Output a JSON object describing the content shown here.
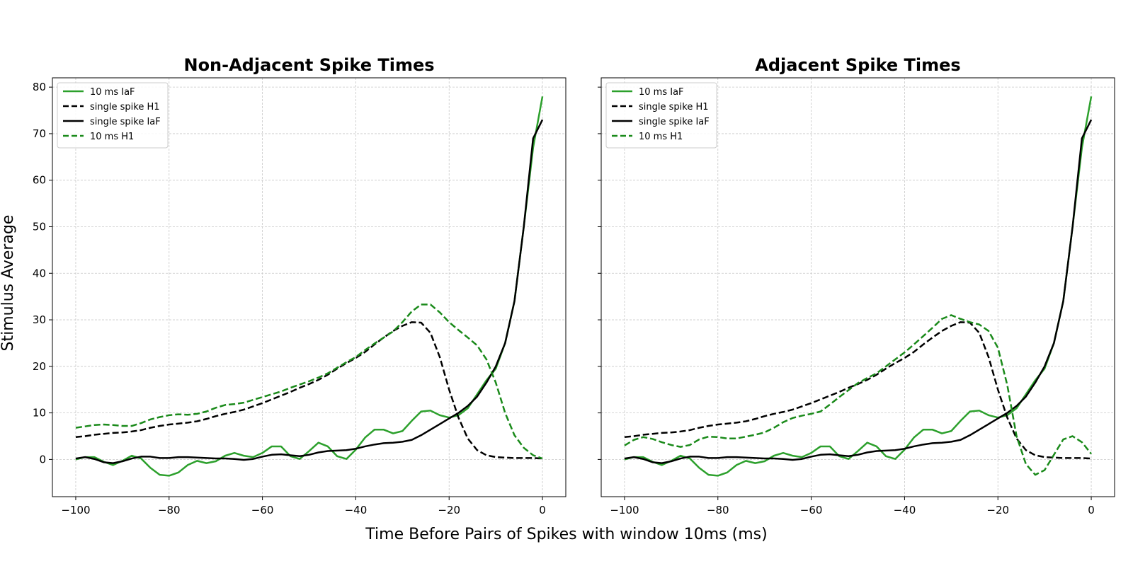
{
  "figure": {
    "xlabel": "Time Before Pairs of Spikes with window 10ms (ms)",
    "ylabel": "Stimulus Average"
  },
  "colors": {
    "green": "#2ca02c",
    "darkgreen": "#1a8a1a",
    "black": "#000000"
  },
  "chart_data": [
    {
      "type": "line",
      "title": "Non-Adjacent Spike Times",
      "xlim": [
        -105,
        5
      ],
      "ylim": [
        -8,
        82
      ],
      "xticks": [
        -100,
        -80,
        -60,
        -40,
        -20,
        0
      ],
      "yticks": [
        0,
        10,
        20,
        30,
        40,
        50,
        60,
        70,
        80
      ],
      "grid": true,
      "legend_position": "upper-left",
      "x": [
        -100,
        -98,
        -96,
        -94,
        -92,
        -90,
        -88,
        -86,
        -84,
        -82,
        -80,
        -78,
        -76,
        -74,
        -72,
        -70,
        -68,
        -66,
        -64,
        -62,
        -60,
        -58,
        -56,
        -54,
        -52,
        -50,
        -48,
        -46,
        -44,
        -42,
        -40,
        -38,
        -36,
        -34,
        -32,
        -30,
        -28,
        -26,
        -24,
        -22,
        -20,
        -18,
        -16,
        -14,
        -12,
        -10,
        -8,
        -6,
        -4,
        -2,
        0
      ],
      "series": [
        {
          "name": "10 ms IaF",
          "color": "#2ca02c",
          "dash": "solid",
          "values": [
            0,
            0.5,
            0.5,
            -0.5,
            -1.2,
            -0.3,
            0.8,
            0.2,
            -1.8,
            -3.3,
            -3.5,
            -2.8,
            -1.2,
            -0.3,
            -0.8,
            -0.4,
            0.8,
            1.4,
            0.8,
            0.5,
            1.4,
            2.8,
            2.8,
            0.7,
            0.1,
            1.8,
            3.6,
            2.8,
            0.7,
            0.1,
            2.1,
            4.7,
            6.4,
            6.4,
            5.6,
            6.1,
            8.3,
            10.3,
            10.5,
            9.5,
            9.0,
            9.5,
            11.0,
            14.0,
            17.0,
            19.5,
            25.0,
            34.0,
            50.0,
            67.0,
            78.0
          ]
        },
        {
          "name": "single spike H1",
          "color": "#000000",
          "dash": "dashed",
          "values": [
            4.8,
            5.0,
            5.3,
            5.5,
            5.7,
            5.8,
            6.0,
            6.3,
            6.8,
            7.2,
            7.5,
            7.7,
            7.9,
            8.2,
            8.7,
            9.3,
            9.8,
            10.2,
            10.7,
            11.4,
            12.1,
            12.9,
            13.7,
            14.5,
            15.4,
            16.2,
            17.1,
            18.2,
            19.5,
            20.7,
            21.8,
            23.1,
            24.7,
            26.2,
            27.6,
            28.7,
            29.5,
            29.4,
            27.2,
            22.0,
            15.0,
            9.0,
            4.5,
            2.0,
            0.9,
            0.5,
            0.4,
            0.3,
            0.3,
            0.3,
            0.2
          ]
        },
        {
          "name": "single spike IaF",
          "color": "#000000",
          "dash": "solid",
          "values": [
            0.2,
            0.5,
            0.1,
            -0.6,
            -0.8,
            -0.4,
            0.2,
            0.6,
            0.6,
            0.3,
            0.3,
            0.5,
            0.5,
            0.4,
            0.3,
            0.2,
            0.2,
            0.1,
            -0.1,
            0.1,
            0.6,
            1.0,
            1.1,
            0.9,
            0.7,
            1.0,
            1.5,
            1.8,
            1.9,
            2.0,
            2.3,
            2.8,
            3.2,
            3.5,
            3.6,
            3.8,
            4.2,
            5.2,
            6.4,
            7.6,
            8.8,
            10.0,
            11.5,
            13.5,
            16.5,
            20.0,
            25.0,
            34.0,
            50.0,
            69.0,
            73.0
          ]
        },
        {
          "name": "10 ms H1",
          "color": "#1a8a1a",
          "dash": "dashed",
          "values": [
            6.8,
            7.1,
            7.4,
            7.5,
            7.4,
            7.2,
            7.2,
            7.8,
            8.6,
            9.1,
            9.5,
            9.7,
            9.6,
            9.8,
            10.3,
            11.1,
            11.7,
            11.9,
            12.2,
            12.8,
            13.4,
            14.0,
            14.6,
            15.4,
            16.1,
            16.8,
            17.6,
            18.5,
            19.7,
            20.9,
            22.0,
            23.5,
            24.9,
            26.2,
            27.5,
            29.5,
            31.8,
            33.3,
            33.3,
            31.6,
            29.5,
            27.8,
            26.2,
            24.5,
            21.5,
            16.5,
            10.0,
            5.2,
            2.5,
            0.9,
            0.2
          ]
        }
      ]
    },
    {
      "type": "line",
      "title": "Adjacent Spike Times",
      "xlim": [
        -105,
        5
      ],
      "ylim": [
        -8,
        82
      ],
      "xticks": [
        -100,
        -80,
        -60,
        -40,
        -20,
        0
      ],
      "yticks": [
        0,
        10,
        20,
        30,
        40,
        50,
        60,
        70,
        80
      ],
      "grid": true,
      "legend_position": "upper-left",
      "x": [
        -100,
        -98,
        -96,
        -94,
        -92,
        -90,
        -88,
        -86,
        -84,
        -82,
        -80,
        -78,
        -76,
        -74,
        -72,
        -70,
        -68,
        -66,
        -64,
        -62,
        -60,
        -58,
        -56,
        -54,
        -52,
        -50,
        -48,
        -46,
        -44,
        -42,
        -40,
        -38,
        -36,
        -34,
        -32,
        -30,
        -28,
        -26,
        -24,
        -22,
        -20,
        -18,
        -16,
        -14,
        -12,
        -10,
        -8,
        -6,
        -4,
        -2,
        0
      ],
      "series": [
        {
          "name": "10 ms IaF",
          "color": "#2ca02c",
          "dash": "solid",
          "values": [
            0,
            0.5,
            0.5,
            -0.5,
            -1.2,
            -0.3,
            0.8,
            0.2,
            -1.8,
            -3.3,
            -3.5,
            -2.8,
            -1.2,
            -0.3,
            -0.8,
            -0.4,
            0.8,
            1.4,
            0.8,
            0.5,
            1.4,
            2.8,
            2.8,
            0.7,
            0.1,
            1.8,
            3.6,
            2.8,
            0.7,
            0.1,
            2.1,
            4.7,
            6.4,
            6.4,
            5.6,
            6.1,
            8.3,
            10.3,
            10.5,
            9.5,
            9.0,
            9.5,
            11.0,
            14.0,
            17.0,
            19.5,
            25.0,
            34.0,
            50.0,
            67.0,
            78.0
          ]
        },
        {
          "name": "single spike H1",
          "color": "#000000",
          "dash": "dashed",
          "values": [
            4.8,
            5.0,
            5.3,
            5.5,
            5.7,
            5.8,
            6.0,
            6.3,
            6.8,
            7.2,
            7.5,
            7.7,
            7.9,
            8.2,
            8.7,
            9.3,
            9.8,
            10.2,
            10.7,
            11.4,
            12.1,
            12.9,
            13.7,
            14.5,
            15.4,
            16.2,
            17.1,
            18.2,
            19.5,
            20.7,
            21.8,
            23.1,
            24.7,
            26.2,
            27.6,
            28.7,
            29.5,
            29.4,
            27.2,
            22.0,
            15.0,
            9.0,
            4.5,
            2.0,
            0.9,
            0.5,
            0.4,
            0.3,
            0.3,
            0.3,
            0.2
          ]
        },
        {
          "name": "single spike IaF",
          "color": "#000000",
          "dash": "solid",
          "values": [
            0.2,
            0.5,
            0.1,
            -0.6,
            -0.8,
            -0.4,
            0.2,
            0.6,
            0.6,
            0.3,
            0.3,
            0.5,
            0.5,
            0.4,
            0.3,
            0.2,
            0.2,
            0.1,
            -0.1,
            0.1,
            0.6,
            1.0,
            1.1,
            0.9,
            0.7,
            1.0,
            1.5,
            1.8,
            1.9,
            2.0,
            2.3,
            2.8,
            3.2,
            3.5,
            3.6,
            3.8,
            4.2,
            5.2,
            6.4,
            7.6,
            8.8,
            10.0,
            11.5,
            13.5,
            16.5,
            20.0,
            25.0,
            34.0,
            50.0,
            69.0,
            73.0
          ]
        },
        {
          "name": "10 ms H1",
          "color": "#1a8a1a",
          "dash": "dashed",
          "values": [
            3.0,
            4.2,
            4.8,
            4.4,
            3.7,
            3.1,
            2.7,
            3.1,
            4.3,
            4.9,
            4.8,
            4.5,
            4.5,
            4.9,
            5.3,
            5.8,
            6.8,
            8.0,
            8.9,
            9.4,
            9.8,
            10.3,
            11.8,
            13.4,
            14.9,
            16.4,
            17.5,
            18.5,
            20.0,
            21.5,
            23.0,
            24.7,
            26.5,
            28.3,
            30.2,
            31.0,
            30.2,
            29.5,
            29.0,
            27.6,
            24.0,
            16.0,
            5.0,
            -1.0,
            -3.3,
            -2.3,
            1.0,
            4.3,
            5.0,
            3.7,
            1.2
          ]
        }
      ]
    }
  ]
}
